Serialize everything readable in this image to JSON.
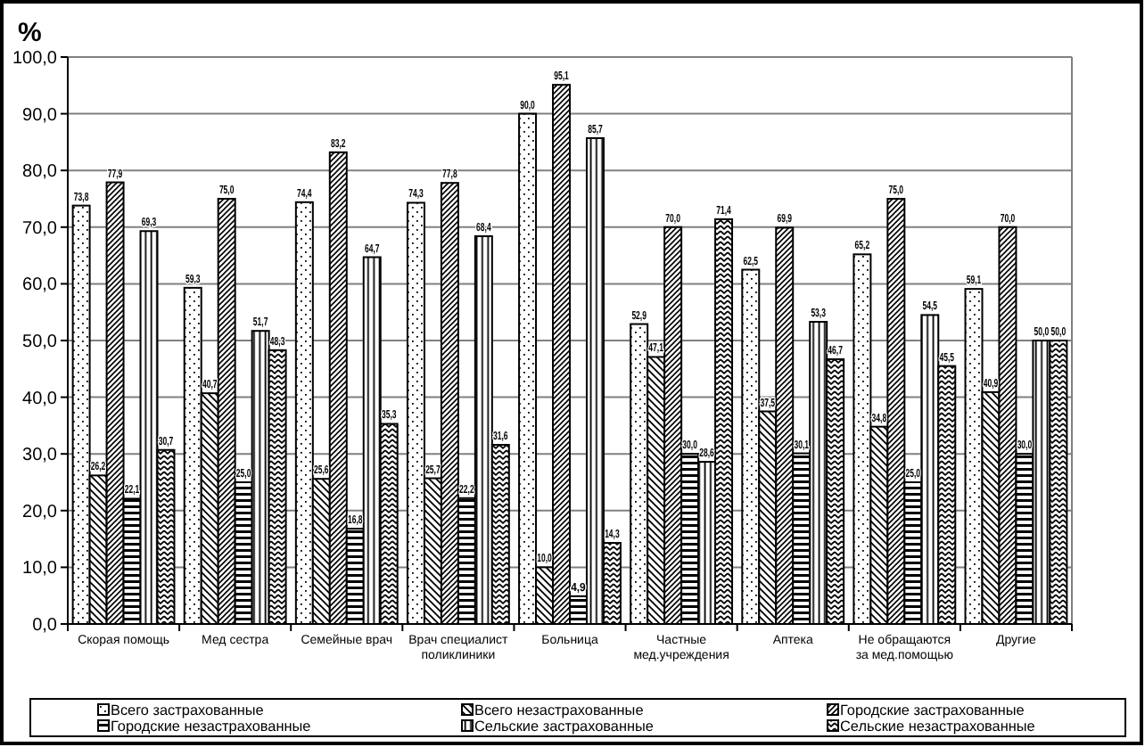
{
  "chart_data": {
    "type": "bar",
    "ylabel": "%",
    "categories": [
      "Скорая помощь",
      "Мед сестра",
      "Семейные врач",
      "Врач специалист поликлиники",
      "Больница",
      "Частные мед.учреждения",
      "Аптека",
      "Не обращаются за мед.помощью",
      "Другие"
    ],
    "series": [
      {
        "name": "Всего застрахованные",
        "color": "#000000",
        "values": [
          73.8,
          59.3,
          74.4,
          74.3,
          90.0,
          52.9,
          62.5,
          65.2,
          59.1
        ],
        "value_labels": [
          "73,8",
          "59,3",
          "74,4",
          "74,3",
          "90,0",
          "52,9",
          "62,5",
          "65,2",
          "59,1"
        ]
      },
      {
        "name": "Всего незастрахованные",
        "color": "#000000",
        "values": [
          26.2,
          40.7,
          25.6,
          25.7,
          10.0,
          47.1,
          37.5,
          34.8,
          40.9
        ],
        "value_labels": [
          "26,2",
          "40,7",
          "25,6",
          "25,7",
          "10,0",
          "47,1",
          "37,5",
          "34,8",
          "40,9"
        ]
      },
      {
        "name": "Городские застрахованные",
        "color": "#000000",
        "values": [
          77.9,
          75.0,
          83.2,
          77.8,
          95.1,
          70.0,
          69.9,
          75.0,
          70.0
        ],
        "value_labels": [
          "77,9",
          "75,0",
          "83,2",
          "77,8",
          "95,1",
          "70,0",
          "69,9",
          "75,0",
          "70,0"
        ]
      },
      {
        "name": "Городские незастрахованные",
        "color": "#000000",
        "values": [
          22.1,
          25.0,
          16.8,
          22.2,
          4.9,
          30.0,
          30.1,
          25.0,
          30.0
        ],
        "value_labels": [
          "22,1",
          "25,0",
          "16,8",
          "22,2",
          "4,9",
          "30,0",
          "30,1",
          "25,0",
          "30,0"
        ]
      },
      {
        "name": "Сельские застрахованные",
        "color": "#000000",
        "values": [
          69.3,
          51.7,
          64.7,
          68.4,
          85.7,
          28.6,
          53.3,
          54.5,
          50.0
        ],
        "value_labels": [
          "69,3",
          "51,7",
          "64,7",
          "68,4",
          "85,7",
          "28,6",
          "53,3",
          "54,5",
          "50,0"
        ]
      },
      {
        "name": "Сельские незастрахованные",
        "color": "#000000",
        "values": [
          30.7,
          48.3,
          35.3,
          31.6,
          14.3,
          71.4,
          46.7,
          45.5,
          50.0
        ],
        "value_labels": [
          "30,7",
          "48,3",
          "35,3",
          "31,6",
          "14,3",
          "71,4",
          "46,7",
          "45,5",
          "50,0"
        ]
      }
    ],
    "ylim": [
      0,
      100
    ],
    "yticks": [
      {
        "value": 0,
        "label": "0,0"
      },
      {
        "value": 10,
        "label": "10,0"
      },
      {
        "value": 20,
        "label": "20,0"
      },
      {
        "value": 30,
        "label": "30,0"
      },
      {
        "value": 40,
        "label": "40,0"
      },
      {
        "value": 50,
        "label": "50,0"
      },
      {
        "value": 60,
        "label": "60,0"
      },
      {
        "value": 70,
        "label": "70,0"
      },
      {
        "value": 80,
        "label": "80,0"
      },
      {
        "value": 90,
        "label": "90,0"
      },
      {
        "value": 100,
        "label": "100,0"
      }
    ],
    "grid": "y",
    "legend": "bottom"
  }
}
